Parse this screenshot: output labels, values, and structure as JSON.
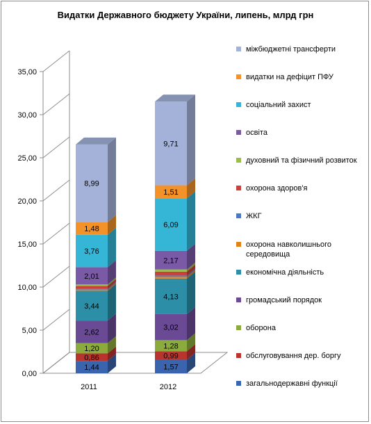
{
  "title": "Видатки Державного бюджету України, липень, млрд грн",
  "chart_data": {
    "type": "bar",
    "stacked": true,
    "three_d": true,
    "categories": [
      "2011",
      "2012"
    ],
    "ylim": [
      0,
      35
    ],
    "yticks": [
      "0,00",
      "5,00",
      "10,00",
      "15,00",
      "20,00",
      "25,00",
      "30,00",
      "35,00"
    ],
    "grid": false,
    "legend_position": "right",
    "series": [
      {
        "name": "загальнодержавні функції",
        "values": [
          1.44,
          1.57
        ],
        "labels": [
          "1,44",
          "1,57"
        ],
        "color": "#3a64ad"
      },
      {
        "name": "обслуговування дер. боргу",
        "values": [
          0.86,
          0.99
        ],
        "labels": [
          "0,86",
          "0,99"
        ],
        "color": "#b9342f"
      },
      {
        "name": "оборона",
        "values": [
          1.2,
          1.28
        ],
        "labels": [
          "1,20",
          "1,28"
        ],
        "color": "#8cab3d"
      },
      {
        "name": "громадський порядок",
        "values": [
          2.62,
          3.02
        ],
        "labels": [
          "2,62",
          "3,02"
        ],
        "color": "#6a4a95"
      },
      {
        "name": "економічна діяльність",
        "values": [
          3.44,
          4.13
        ],
        "labels": [
          "3,44",
          "4,13"
        ],
        "color": "#2c8fa7"
      },
      {
        "name": "охорона навколишнього середовища",
        "values": [
          0.15,
          0.2
        ],
        "labels": [
          "",
          ""
        ],
        "color": "#e2821f"
      },
      {
        "name": "ЖКГ",
        "values": [
          0.12,
          0.15
        ],
        "labels": [
          "",
          ""
        ],
        "color": "#4878c6"
      },
      {
        "name": "охорона здоров'я",
        "values": [
          0.3,
          0.45
        ],
        "labels": [
          "",
          ""
        ],
        "color": "#cc3f3a"
      },
      {
        "name": "духовний та фізичний розвиток",
        "values": [
          0.17,
          0.25
        ],
        "labels": [
          "",
          ""
        ],
        "color": "#9cbd4a"
      },
      {
        "name": "освіта",
        "values": [
          2.01,
          2.17
        ],
        "labels": [
          "2,01",
          "2,17"
        ],
        "color": "#7a5aa6"
      },
      {
        "name": "соціальний захист",
        "values": [
          3.76,
          6.09
        ],
        "labels": [
          "3,76",
          "6,09"
        ],
        "color": "#35b6d6"
      },
      {
        "name": "видатки на дефіцит ПФУ",
        "values": [
          1.48,
          1.51
        ],
        "labels": [
          "1,48",
          "1,51"
        ],
        "color": "#f39228"
      },
      {
        "name": "міжбюджетні трансферти",
        "values": [
          8.99,
          9.71
        ],
        "labels": [
          "8,99",
          "9,71"
        ],
        "color": "#a4b2d9"
      }
    ]
  }
}
